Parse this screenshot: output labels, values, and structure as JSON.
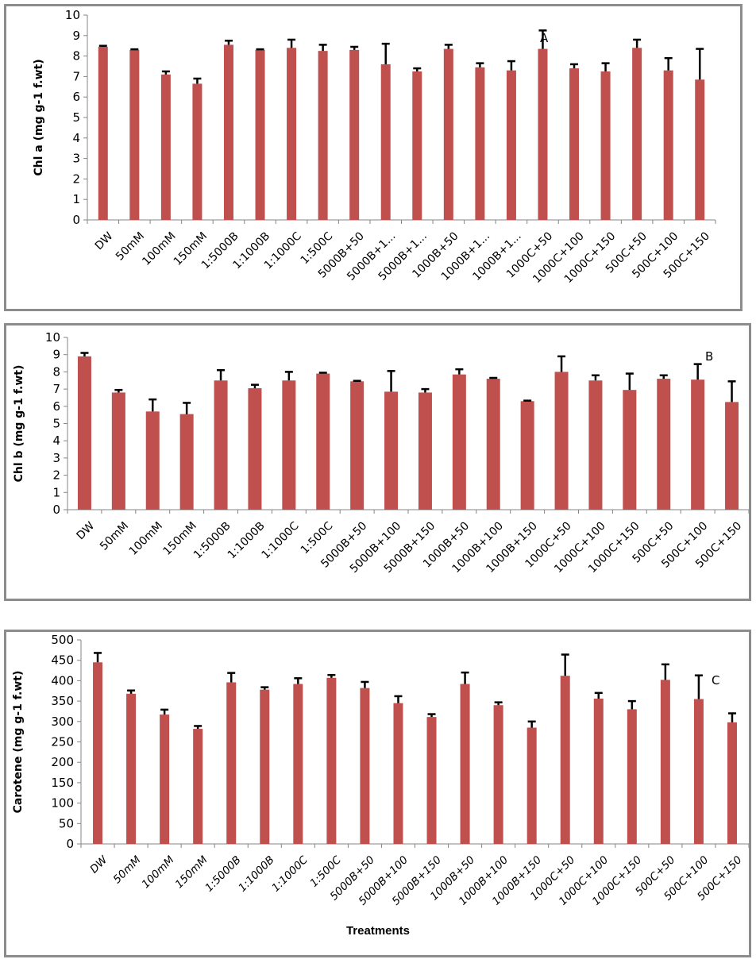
{
  "chart_data": [
    {
      "type": "bar",
      "panel_label": "A",
      "title": "",
      "xlabel": "",
      "ylabel": "Chl a (mg g-1 f.wt)",
      "ylim": [
        0,
        10
      ],
      "yticks": [
        0,
        1,
        2,
        3,
        4,
        5,
        6,
        7,
        8,
        9,
        10
      ],
      "grid": false,
      "bar_color": "#c0504d",
      "error_bar_color": "#000000",
      "categories": [
        "DW",
        "50mM",
        "100mM",
        "150mM",
        "1:5000B",
        "1:1000B",
        "1:1000C",
        "1:500C",
        "5000B+50",
        "5000B+1...",
        "5000B+1...",
        "1000B+50",
        "1000B+1...",
        "1000B+1...",
        "1000C+50",
        "1000C+100",
        "1000C+150",
        "500C+50",
        "500C+100",
        "500C+150"
      ],
      "values": [
        8.45,
        8.3,
        7.1,
        6.65,
        8.55,
        8.3,
        8.4,
        8.25,
        8.3,
        7.6,
        7.25,
        8.35,
        7.45,
        7.3,
        8.35,
        7.4,
        7.25,
        8.4,
        7.3,
        6.85
      ],
      "errors": [
        0.05,
        0.03,
        0.15,
        0.25,
        0.2,
        0.03,
        0.4,
        0.3,
        0.15,
        1.0,
        0.15,
        0.2,
        0.2,
        0.45,
        0.9,
        0.2,
        0.4,
        0.4,
        0.6,
        1.5
      ]
    },
    {
      "type": "bar",
      "panel_label": "B",
      "title": "",
      "xlabel": "",
      "ylabel": "Chl b (mg g-1 f.wt)",
      "ylim": [
        0,
        10
      ],
      "yticks": [
        0,
        1,
        2,
        3,
        4,
        5,
        6,
        7,
        8,
        9,
        10
      ],
      "grid": false,
      "bar_color": "#c0504d",
      "error_bar_color": "#000000",
      "categories": [
        "DW",
        "50mM",
        "100mM",
        "150mM",
        "1:5000B",
        "1:1000B",
        "1:1000C",
        "1:500C",
        "5000B+50",
        "5000B+100",
        "5000B+150",
        "1000B+50",
        "1000B+100",
        "1000B+150",
        "1000C+50",
        "1000C+100",
        "1000C+150",
        "500C+50",
        "500C+100",
        "500C+150"
      ],
      "values": [
        8.9,
        6.8,
        5.7,
        5.55,
        7.5,
        7.05,
        7.5,
        7.9,
        7.45,
        6.85,
        6.8,
        7.85,
        7.6,
        6.3,
        8.0,
        7.5,
        6.95,
        7.6,
        7.55,
        6.25
      ],
      "errors": [
        0.2,
        0.15,
        0.7,
        0.65,
        0.6,
        0.2,
        0.5,
        0.05,
        0.03,
        1.2,
        0.2,
        0.3,
        0.05,
        0.03,
        0.9,
        0.3,
        0.95,
        0.2,
        0.9,
        1.2
      ]
    },
    {
      "type": "bar",
      "panel_label": "C",
      "title": "",
      "xlabel": "Treatments",
      "ylabel": "Carotene (mg g-1 f.wt)",
      "ylim": [
        0,
        500
      ],
      "yticks": [
        0,
        50,
        100,
        150,
        200,
        250,
        300,
        350,
        400,
        450,
        500
      ],
      "grid": false,
      "bar_color": "#c0504d",
      "error_bar_color": "#000000",
      "categories": [
        "DW",
        "50mM",
        "100mM",
        "150mM",
        "1:5000B",
        "1:1000B",
        "1:1000C",
        "1:500C",
        "5000B+50",
        "5000B+100",
        "5000B+150",
        "1000B+50",
        "1000B+100",
        "1000B+150",
        "1000C+50",
        "1000C+100",
        "1000C+150",
        "500C+50",
        "500C+100",
        "500C+150"
      ],
      "values": [
        445,
        368,
        317,
        282,
        396,
        378,
        392,
        407,
        382,
        345,
        311,
        392,
        340,
        285,
        412,
        356,
        330,
        402,
        355,
        298
      ],
      "errors": [
        23,
        8,
        12,
        7,
        23,
        6,
        14,
        7,
        15,
        17,
        7,
        28,
        7,
        15,
        52,
        14,
        20,
        38,
        58,
        22
      ]
    }
  ]
}
